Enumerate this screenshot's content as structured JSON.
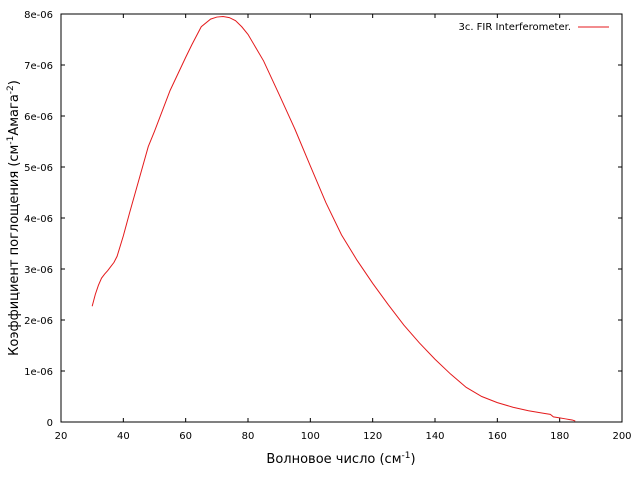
{
  "chart_data": {
    "type": "line",
    "xlabel": "Волновое число (см",
    "xlabel_sup": "-1",
    "xlabel_end": ")",
    "ylabel": "Коэффициент поглощения (см",
    "ylabel_sup1": "-1",
    "ylabel_mid": "Амага",
    "ylabel_sup2": "-2",
    "ylabel_end": ")",
    "xlim": [
      20,
      200
    ],
    "ylim": [
      0,
      8e-06
    ],
    "x_ticks": [
      20,
      40,
      60,
      80,
      100,
      120,
      140,
      160,
      180,
      200
    ],
    "x_tick_labels": [
      "20",
      "40",
      "60",
      "80",
      "100",
      "120",
      "140",
      "160",
      "180",
      "200"
    ],
    "y_ticks": [
      0,
      1e-06,
      2e-06,
      3e-06,
      4e-06,
      5e-06,
      6e-06,
      7e-06,
      8e-06
    ],
    "y_tick_labels": [
      "0",
      "1e-06",
      "2e-06",
      "3e-06",
      "4e-06",
      "5e-06",
      "6e-06",
      "7e-06",
      "8e-06"
    ],
    "grid": false,
    "legend_position": "top-right",
    "series": [
      {
        "name": "3c. FIR Interferometer.",
        "color": "#e41a1c",
        "x": [
          30,
          31,
          32,
          33,
          34,
          35,
          36,
          37,
          38,
          40,
          42,
          45,
          48,
          50,
          55,
          60,
          62,
          65,
          68,
          70,
          72,
          74,
          76,
          78,
          80,
          85,
          90,
          95,
          100,
          105,
          110,
          115,
          120,
          125,
          130,
          135,
          140,
          145,
          150,
          155,
          160,
          165,
          170,
          175,
          177,
          178,
          180,
          182,
          183,
          184,
          185
        ],
        "y": [
          2.27e-06,
          2.5e-06,
          2.68e-06,
          2.82e-06,
          2.9e-06,
          2.97e-06,
          3.05e-06,
          3.13e-06,
          3.25e-06,
          3.65e-06,
          4.1e-06,
          4.75e-06,
          5.4e-06,
          5.7e-06,
          6.5e-06,
          7.15e-06,
          7.4e-06,
          7.75e-06,
          7.9e-06,
          7.94e-06,
          7.95e-06,
          7.93e-06,
          7.87e-06,
          7.75e-06,
          7.6e-06,
          7.08e-06,
          6.42e-06,
          5.75e-06,
          5.02e-06,
          4.3e-06,
          3.67e-06,
          3.17e-06,
          2.72e-06,
          2.3e-06,
          1.9e-06,
          1.55e-06,
          1.23e-06,
          9.4e-07,
          6.8e-07,
          5e-07,
          3.8e-07,
          2.9e-07,
          2.2e-07,
          1.7e-07,
          1.5e-07,
          1e-07,
          8e-08,
          6e-08,
          5e-08,
          4e-08,
          2e-08
        ]
      }
    ]
  }
}
